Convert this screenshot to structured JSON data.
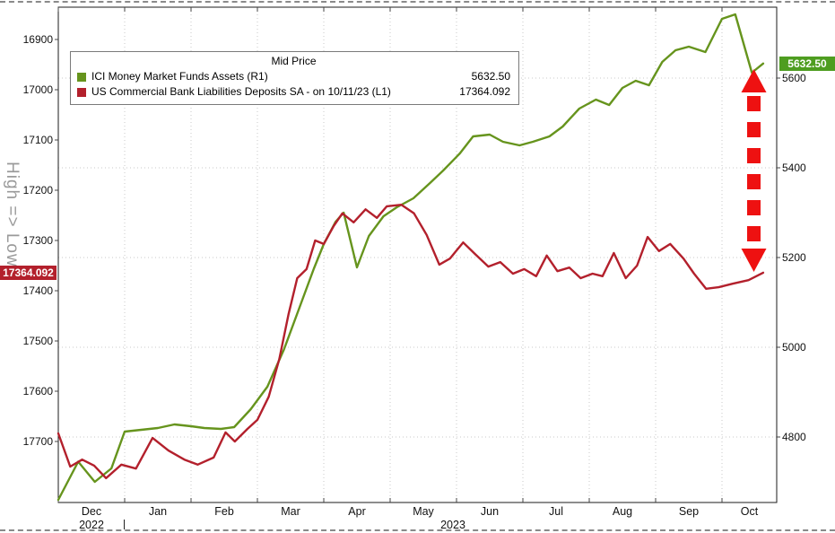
{
  "colors": {
    "green_series": "#66941d",
    "red_series": "#b3202c",
    "arrow": "#ee1111",
    "badge_green_bg": "#4e9d20",
    "badge_red_bg": "#b3202c",
    "grid": "#c9c9c9",
    "axis_text": "#111111",
    "rotated_label_text": "#9a9a9a"
  },
  "legend": {
    "title": "Mid Price",
    "rows": [
      {
        "label": "ICI Money Market Funds Assets  (R1)",
        "value": "5632.50",
        "color": "#66941d"
      },
      {
        "label": "US Commercial Bank Liabilities Deposits SA -  on 10/11/23  (L1)",
        "value": "17364.092",
        "color": "#b3202c"
      }
    ]
  },
  "badges": {
    "left": {
      "text": "17364.092",
      "color": "#b3202c"
    },
    "right": {
      "text": "5632.50",
      "color": "#4e9d20"
    }
  },
  "chart_data": {
    "type": "line",
    "title": "Mid Price",
    "x_axis": {
      "months": [
        "Dec",
        "Jan",
        "Feb",
        "Mar",
        "Apr",
        "May",
        "Jun",
        "Jul",
        "Aug",
        "Sep",
        "Oct"
      ],
      "years": [
        "2022",
        "2023"
      ],
      "x_unit": "months since 2022-12-01"
    },
    "left_axis": {
      "label": "High => Low",
      "inverted": true,
      "ticks": [
        16900,
        17000,
        17100,
        17200,
        17300,
        17400,
        17500,
        17600,
        17700
      ],
      "ylim_top_to_bottom": [
        16836,
        17886
      ],
      "series": "US Commercial Bank Liabilities Deposits SA"
    },
    "right_axis": {
      "ticks": [
        5600,
        5400,
        5200,
        5000,
        4800
      ],
      "ylim_top_to_bottom": [
        5758,
        4654
      ],
      "series": "ICI Money Market Funds Assets"
    },
    "series": [
      {
        "name": "ICI Money Market Funds Assets",
        "axis": "R1",
        "color": "#66941d",
        "last_value": 5632.5,
        "points": [
          [
            0,
            4660
          ],
          [
            0.3,
            4745
          ],
          [
            0.55,
            4700
          ],
          [
            0.8,
            4730
          ],
          [
            1.0,
            4812
          ],
          [
            1.25,
            4816
          ],
          [
            1.5,
            4820
          ],
          [
            1.75,
            4828
          ],
          [
            2.0,
            4824
          ],
          [
            2.2,
            4820
          ],
          [
            2.45,
            4818
          ],
          [
            2.65,
            4822
          ],
          [
            2.9,
            4862
          ],
          [
            3.15,
            4912
          ],
          [
            3.4,
            4995
          ],
          [
            3.65,
            5095
          ],
          [
            3.85,
            5175
          ],
          [
            4.0,
            5230
          ],
          [
            4.18,
            5280
          ],
          [
            4.3,
            5300
          ],
          [
            4.5,
            5178
          ],
          [
            4.68,
            5248
          ],
          [
            4.9,
            5292
          ],
          [
            5.1,
            5312
          ],
          [
            5.35,
            5332
          ],
          [
            5.6,
            5366
          ],
          [
            5.8,
            5394
          ],
          [
            6.05,
            5432
          ],
          [
            6.25,
            5470
          ],
          [
            6.5,
            5474
          ],
          [
            6.7,
            5458
          ],
          [
            6.95,
            5450
          ],
          [
            7.15,
            5458
          ],
          [
            7.4,
            5470
          ],
          [
            7.6,
            5492
          ],
          [
            7.85,
            5532
          ],
          [
            8.1,
            5552
          ],
          [
            8.3,
            5540
          ],
          [
            8.5,
            5578
          ],
          [
            8.7,
            5594
          ],
          [
            8.9,
            5584
          ],
          [
            9.1,
            5636
          ],
          [
            9.3,
            5662
          ],
          [
            9.5,
            5670
          ],
          [
            9.75,
            5658
          ],
          [
            10.0,
            5732
          ],
          [
            10.2,
            5742
          ],
          [
            10.45,
            5612
          ],
          [
            10.62,
            5632.5
          ]
        ]
      },
      {
        "name": "US Commercial Bank Liabilities Deposits SA",
        "axis": "L1",
        "color": "#b3202c",
        "as_of": "10/11/23",
        "last_value": 17364.092,
        "points": [
          [
            0,
            17684
          ],
          [
            0.18,
            17750
          ],
          [
            0.36,
            17736
          ],
          [
            0.54,
            17748
          ],
          [
            0.72,
            17773
          ],
          [
            0.95,
            17746
          ],
          [
            1.17,
            17754
          ],
          [
            1.42,
            17693
          ],
          [
            1.66,
            17718
          ],
          [
            1.9,
            17736
          ],
          [
            2.1,
            17746
          ],
          [
            2.34,
            17732
          ],
          [
            2.52,
            17682
          ],
          [
            2.66,
            17700
          ],
          [
            2.85,
            17675
          ],
          [
            3.0,
            17657
          ],
          [
            3.17,
            17611
          ],
          [
            3.33,
            17536
          ],
          [
            3.47,
            17446
          ],
          [
            3.6,
            17375
          ],
          [
            3.74,
            17357
          ],
          [
            3.87,
            17300
          ],
          [
            4.0,
            17307
          ],
          [
            4.15,
            17271
          ],
          [
            4.28,
            17246
          ],
          [
            4.45,
            17264
          ],
          [
            4.63,
            17238
          ],
          [
            4.8,
            17255
          ],
          [
            4.95,
            17232
          ],
          [
            5.17,
            17229
          ],
          [
            5.36,
            17246
          ],
          [
            5.55,
            17289
          ],
          [
            5.74,
            17348
          ],
          [
            5.9,
            17336
          ],
          [
            6.1,
            17304
          ],
          [
            6.28,
            17327
          ],
          [
            6.48,
            17352
          ],
          [
            6.66,
            17343
          ],
          [
            6.85,
            17366
          ],
          [
            7.02,
            17357
          ],
          [
            7.2,
            17371
          ],
          [
            7.36,
            17330
          ],
          [
            7.52,
            17361
          ],
          [
            7.7,
            17354
          ],
          [
            7.87,
            17375
          ],
          [
            8.05,
            17366
          ],
          [
            8.2,
            17371
          ],
          [
            8.37,
            17325
          ],
          [
            8.55,
            17375
          ],
          [
            8.72,
            17350
          ],
          [
            8.88,
            17293
          ],
          [
            9.05,
            17321
          ],
          [
            9.22,
            17307
          ],
          [
            9.42,
            17336
          ],
          [
            9.58,
            17366
          ],
          [
            9.76,
            17396
          ],
          [
            9.95,
            17393
          ],
          [
            10.16,
            17386
          ],
          [
            10.4,
            17379
          ],
          [
            10.62,
            17364.092
          ]
        ]
      }
    ],
    "annotation_arrow": {
      "style": "dashed-double-headed-vertical",
      "color": "#ee1111",
      "t": 10.48,
      "axis": "R1",
      "top_value": 5620,
      "bottom_value": 5168
    }
  }
}
